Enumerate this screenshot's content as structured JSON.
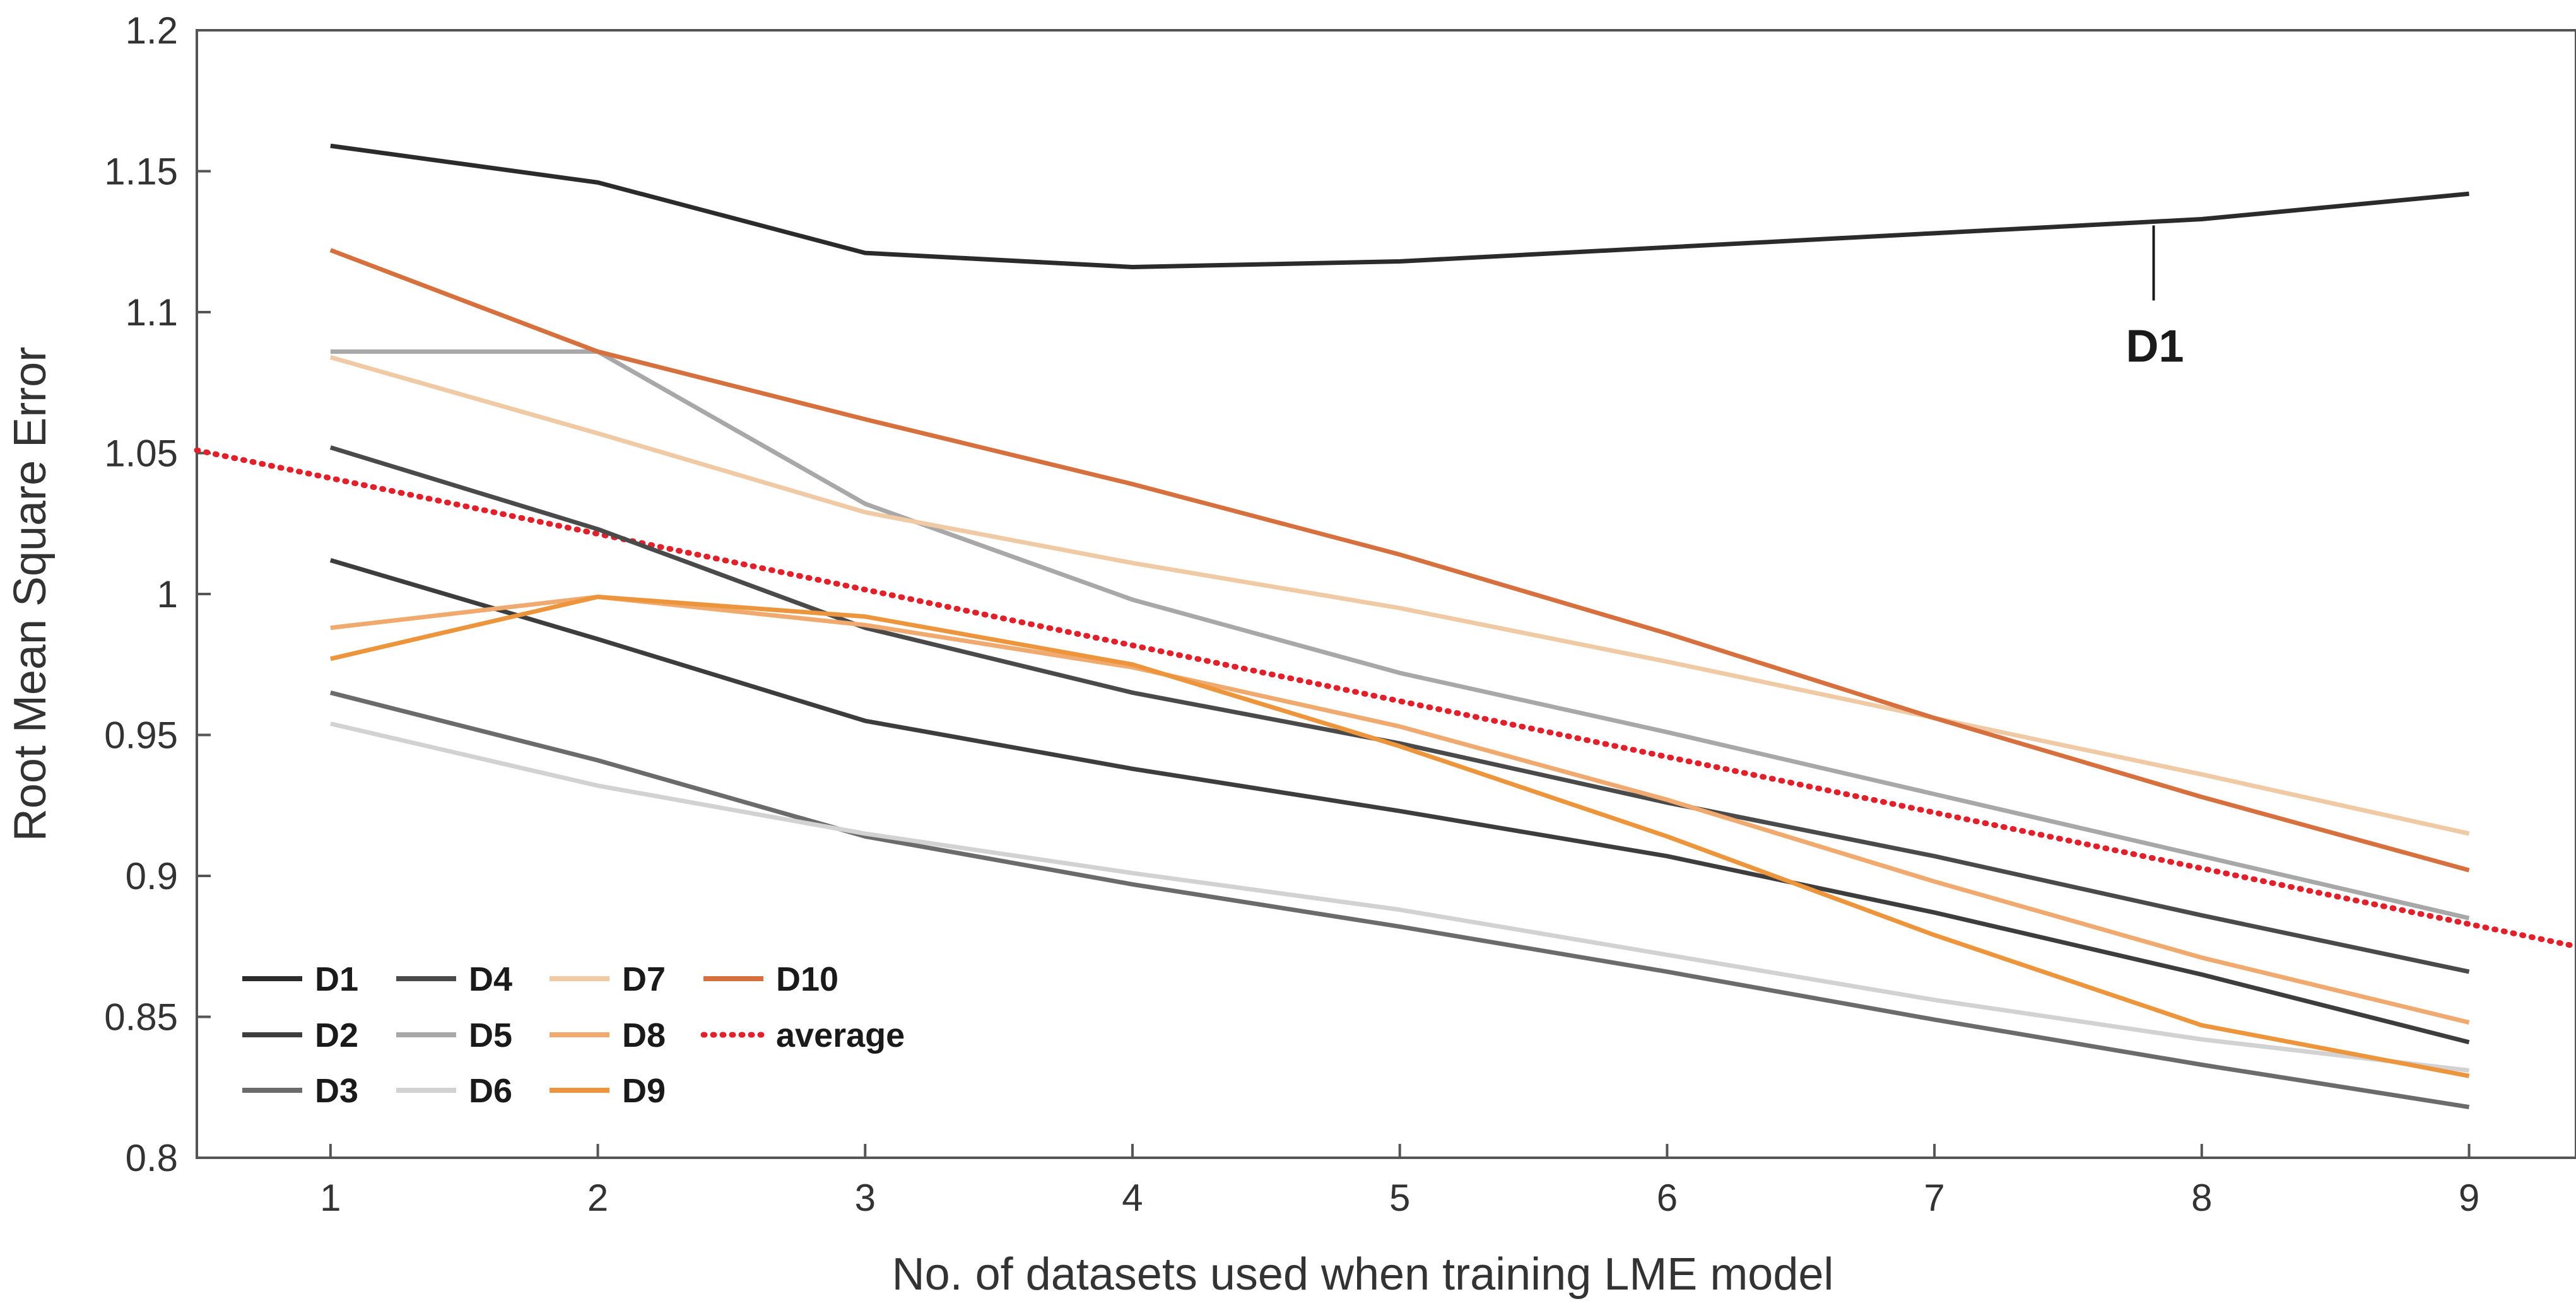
{
  "chart_data": {
    "type": "line",
    "title": "",
    "xlabel": "No. of datasets used when training LME model",
    "ylabel": "Root Mean Square Error",
    "xlim": [
      0.5,
      9.4
    ],
    "ylim": [
      0.8,
      1.2
    ],
    "x": [
      1,
      2,
      3,
      4,
      5,
      6,
      7,
      8,
      9
    ],
    "x_ticks": [
      "1",
      "2",
      "3",
      "4",
      "5",
      "6",
      "7",
      "8",
      "9"
    ],
    "y_ticks": [
      {
        "value": 0.8,
        "label": "0.8"
      },
      {
        "value": 0.85,
        "label": "0.85"
      },
      {
        "value": 0.9,
        "label": "0.9"
      },
      {
        "value": 0.95,
        "label": "0.95"
      },
      {
        "value": 1.0,
        "label": "1"
      },
      {
        "value": 1.05,
        "label": "1.05"
      },
      {
        "value": 1.1,
        "label": "1.1"
      },
      {
        "value": 1.15,
        "label": "1.15"
      },
      {
        "value": 1.2,
        "label": "1.2"
      }
    ],
    "grid": false,
    "legend_position": "bottom-left",
    "series": [
      {
        "name": "D1",
        "color": "#2b2b2b",
        "values": [
          1.159,
          1.146,
          1.121,
          1.116,
          1.118,
          1.123,
          1.128,
          1.133,
          1.142
        ]
      },
      {
        "name": "D2",
        "color": "#3d3d3d",
        "values": [
          1.012,
          0.984,
          0.955,
          0.938,
          0.923,
          0.907,
          0.887,
          0.865,
          0.841
        ]
      },
      {
        "name": "D3",
        "color": "#6b6b6b",
        "values": [
          0.965,
          0.941,
          0.914,
          0.897,
          0.882,
          0.866,
          0.849,
          0.833,
          0.818
        ]
      },
      {
        "name": "D4",
        "color": "#4a4a4a",
        "values": [
          1.052,
          1.023,
          0.988,
          0.965,
          0.947,
          0.926,
          0.907,
          0.886,
          0.866
        ]
      },
      {
        "name": "D5",
        "color": "#a8a8a8",
        "values": [
          1.086,
          1.086,
          1.032,
          0.998,
          0.972,
          0.951,
          0.929,
          0.907,
          0.885
        ]
      },
      {
        "name": "D6",
        "color": "#d2d2d2",
        "values": [
          0.954,
          0.932,
          0.915,
          0.901,
          0.888,
          0.872,
          0.856,
          0.842,
          0.831
        ]
      },
      {
        "name": "D7",
        "color": "#f0c9a5",
        "values": [
          1.084,
          1.057,
          1.029,
          1.011,
          0.995,
          0.976,
          0.956,
          0.936,
          0.915
        ]
      },
      {
        "name": "D8",
        "color": "#f0a96e",
        "values": [
          0.988,
          0.999,
          0.989,
          0.974,
          0.953,
          0.927,
          0.898,
          0.871,
          0.848
        ]
      },
      {
        "name": "D9",
        "color": "#ec953c",
        "values": [
          0.977,
          0.999,
          0.992,
          0.975,
          0.946,
          0.914,
          0.879,
          0.847,
          0.829
        ]
      },
      {
        "name": "D10",
        "color": "#d6703e",
        "values": [
          1.122,
          1.086,
          1.062,
          1.039,
          1.014,
          0.986,
          0.956,
          0.928,
          0.902
        ]
      }
    ],
    "average": {
      "name": "average",
      "color": "#e0202a",
      "style": "dotted",
      "x": [
        0.5,
        9.4
      ],
      "values": [
        1.051,
        0.875
      ]
    },
    "annotations": [
      {
        "text": "D1",
        "series": "D1",
        "at_x": 7.82
      }
    ]
  }
}
